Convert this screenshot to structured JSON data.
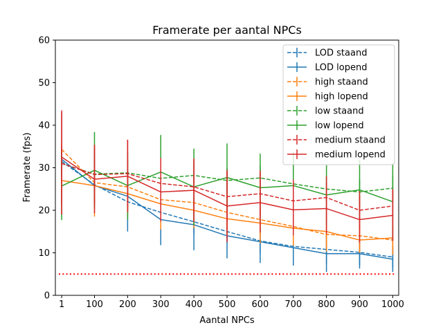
{
  "chart_data": {
    "type": "line",
    "title": "Framerate per aantal NPCs",
    "xlabel": "Aantal NPCs",
    "ylabel": "Framerate (fps)",
    "xlim": [
      -18,
      1018
    ],
    "ylim": [
      0,
      60
    ],
    "x": [
      1,
      100,
      200,
      300,
      400,
      500,
      600,
      700,
      800,
      900,
      1000
    ],
    "xticks": [
      "1",
      "100",
      "200",
      "300",
      "400",
      "500",
      "600",
      "700",
      "800",
      "900",
      "1000"
    ],
    "yticks": [
      0,
      10,
      20,
      30,
      40,
      50,
      60
    ],
    "legend_position": "top-right",
    "error_bars": true,
    "reference_line": {
      "y": 5,
      "color": "#ff0000",
      "style": "dotted"
    },
    "series": [
      {
        "name": "LOD staand",
        "color": "#1f77b4",
        "style": "dashed",
        "values": [
          31.5,
          26.0,
          22.0,
          19.5,
          17.3,
          15.0,
          12.8,
          11.5,
          10.8,
          10.1,
          9.0
        ],
        "errors": [
          2.5,
          1.5,
          7.0,
          4.0,
          3.0,
          2.5,
          3.0,
          2.8,
          3.5,
          3.0,
          2.5
        ]
      },
      {
        "name": "LOD lopend",
        "color": "#1f77b4",
        "style": "solid",
        "values": [
          32.0,
          25.8,
          23.3,
          17.8,
          16.6,
          14.0,
          12.6,
          11.2,
          9.8,
          9.8,
          8.5
        ],
        "errors": [
          3.0,
          2.5,
          3.0,
          6.0,
          6.0,
          5.3,
          5.0,
          4.2,
          4.3,
          3.5,
          3.0
        ]
      },
      {
        "name": "high staand",
        "color": "#ff7f0e",
        "style": "dashed",
        "values": [
          34.3,
          26.5,
          25.5,
          22.5,
          21.8,
          19.5,
          17.8,
          16.2,
          14.3,
          14.0,
          13.0
        ],
        "errors": [
          1.5,
          8.0,
          7.0,
          7.0,
          6.0,
          5.5,
          5.5,
          4.5,
          4.0,
          4.0,
          3.5
        ]
      },
      {
        "name": "high lopend",
        "color": "#ff7f0e",
        "style": "solid",
        "values": [
          27.0,
          25.8,
          23.9,
          21.5,
          20.0,
          18.0,
          17.0,
          15.8,
          15.0,
          13.0,
          13.5
        ],
        "errors": [
          8.0,
          4.0,
          4.0,
          3.0,
          3.0,
          3.0,
          3.0,
          3.0,
          3.0,
          3.0,
          3.0
        ]
      },
      {
        "name": "low staand",
        "color": "#2ca02c",
        "style": "dashed",
        "values": [
          31.0,
          28.5,
          28.8,
          27.5,
          28.2,
          27.0,
          27.6,
          26.2,
          25.0,
          24.3,
          25.2
        ],
        "errors": [
          3.0,
          3.0,
          3.0,
          3.0,
          3.0,
          3.0,
          3.0,
          3.0,
          3.0,
          3.0,
          3.0
        ]
      },
      {
        "name": "low lopend",
        "color": "#2ca02c",
        "style": "solid",
        "values": [
          25.7,
          29.4,
          25.8,
          29.0,
          25.5,
          27.7,
          25.3,
          25.8,
          23.6,
          24.8,
          22.0
        ],
        "errors": [
          8.0,
          9.0,
          8.0,
          8.7,
          9.0,
          8.0,
          8.0,
          8.0,
          7.0,
          7.0,
          9.0
        ]
      },
      {
        "name": "medium staand",
        "color": "#d62728",
        "style": "dashed",
        "values": [
          31.0,
          28.4,
          28.6,
          26.3,
          25.5,
          23.2,
          23.9,
          22.2,
          23.0,
          20.0,
          21.0
        ],
        "errors": [
          12.0,
          7.0,
          8.0,
          6.0,
          6.5,
          6.0,
          5.5,
          5.0,
          5.0,
          4.5,
          4.0
        ]
      },
      {
        "name": "medium lopend",
        "color": "#d62728",
        "style": "solid",
        "values": [
          32.5,
          27.3,
          28.0,
          24.3,
          24.7,
          21.0,
          21.8,
          20.1,
          20.4,
          17.8,
          18.8
        ],
        "errors": [
          11.0,
          8.0,
          8.5,
          7.0,
          7.5,
          8.5,
          7.0,
          6.0,
          6.0,
          5.5,
          6.0
        ]
      }
    ]
  }
}
